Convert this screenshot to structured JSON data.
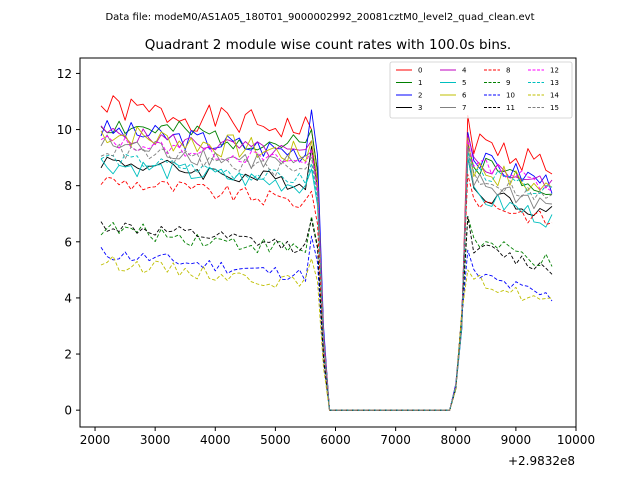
{
  "supertitle": "Data file: modeM0/AS1A05_180T01_9000002992_20081cztM0_level2_quad_clean.evt",
  "chart_data": {
    "type": "line",
    "title": "Quadrant 2 module wise count rates with 100.0s bins.",
    "xlabel": "",
    "ylabel": "",
    "x_offset_label": "+2.9832e8",
    "xlim": [
      1750,
      10000
    ],
    "ylim": [
      -0.6,
      12.55
    ],
    "x_ticks": [
      2000,
      3000,
      4000,
      5000,
      6000,
      7000,
      8000,
      9000,
      10000
    ],
    "x_tick_labels": [
      "2000",
      "3000",
      "4000",
      "5000",
      "6000",
      "7000",
      "8000",
      "9000",
      "10000"
    ],
    "y_ticks": [
      0,
      2,
      4,
      6,
      8,
      10,
      12
    ],
    "y_tick_labels": [
      "0",
      "2",
      "4",
      "6",
      "8",
      "10",
      "12"
    ],
    "grid": false,
    "legend_placement": "top-right",
    "legend_columns": 4,
    "time_series": {
      "start": 2100,
      "bin": 100,
      "count": 76,
      "gap_start": 5900,
      "gap_end": 7900,
      "segment1_end": 5500,
      "segment2_start": 8200,
      "ramp_up": [
        [
          8000,
          0.85
        ],
        [
          8100,
          3.2
        ]
      ]
    },
    "series": [
      {
        "name": "0",
        "color": "#ff0000",
        "dash": "solid",
        "level_pre": 10.8,
        "level_post": 9.6,
        "peak_pre": 10.0,
        "peak_post": 10.5,
        "noise": 0.5,
        "seed": 1
      },
      {
        "name": "1",
        "color": "#008000",
        "dash": "solid",
        "level_pre": 10.2,
        "level_post": 8.9,
        "peak_pre": 10.0,
        "peak_post": 9.5,
        "noise": 0.4,
        "seed": 2
      },
      {
        "name": "2",
        "color": "#0000ff",
        "dash": "solid",
        "level_pre": 10.0,
        "level_post": 9.0,
        "peak_pre": 10.7,
        "peak_post": 9.9,
        "noise": 0.4,
        "seed": 3
      },
      {
        "name": "3",
        "color": "#000000",
        "dash": "solid",
        "level_pre": 8.9,
        "level_post": 7.9,
        "peak_pre": 9.4,
        "peak_post": 9.0,
        "noise": 0.3,
        "seed": 4
      },
      {
        "name": "4",
        "color": "#bf00bf",
        "dash": "solid",
        "level_pre": 9.9,
        "level_post": 8.9,
        "peak_pre": 9.6,
        "peak_post": 9.8,
        "noise": 0.3,
        "seed": 5
      },
      {
        "name": "5",
        "color": "#00bfbf",
        "dash": "solid",
        "level_pre": 8.8,
        "level_post": 7.7,
        "peak_pre": 8.6,
        "peak_post": 9.0,
        "noise": 0.35,
        "seed": 6
      },
      {
        "name": "6",
        "color": "#bfbf00",
        "dash": "solid",
        "level_pre": 9.9,
        "level_post": 8.7,
        "peak_pre": 9.6,
        "peak_post": 9.7,
        "noise": 0.45,
        "seed": 7
      },
      {
        "name": "7",
        "color": "#808080",
        "dash": "solid",
        "level_pre": 9.5,
        "level_post": 8.2,
        "peak_pre": 9.2,
        "peak_post": 9.3,
        "noise": 0.4,
        "seed": 8
      },
      {
        "name": "8",
        "color": "#ff0000",
        "dash": "dashed",
        "level_pre": 8.2,
        "level_post": 7.6,
        "peak_pre": 7.8,
        "peak_post": 8.4,
        "noise": 0.3,
        "seed": 9
      },
      {
        "name": "9",
        "color": "#008000",
        "dash": "dashed",
        "level_pre": 6.5,
        "level_post": 6.1,
        "peak_pre": 6.9,
        "peak_post": 6.9,
        "noise": 0.3,
        "seed": 10
      },
      {
        "name": "10",
        "color": "#0000ff",
        "dash": "dashed",
        "level_pre": 5.6,
        "level_post": 4.9,
        "peak_pre": 6.2,
        "peak_post": 5.7,
        "noise": 0.25,
        "seed": 11
      },
      {
        "name": "11",
        "color": "#000000",
        "dash": "dashed",
        "level_pre": 6.6,
        "level_post": 5.9,
        "peak_pre": 6.8,
        "peak_post": 6.9,
        "noise": 0.25,
        "seed": 12
      },
      {
        "name": "12",
        "color": "#ff00ff",
        "dash": "dashed",
        "level_pre": 9.6,
        "level_post": 8.9,
        "peak_pre": 9.3,
        "peak_post": 9.6,
        "noise": 0.25,
        "seed": 13
      },
      {
        "name": "13",
        "color": "#00bfbf",
        "dash": "dashed",
        "level_pre": 9.0,
        "level_post": 8.6,
        "peak_pre": 8.8,
        "peak_post": 9.2,
        "noise": 0.25,
        "seed": 14
      },
      {
        "name": "14",
        "color": "#bfbf00",
        "dash": "dashed",
        "level_pre": 5.3,
        "level_post": 4.7,
        "peak_pre": 5.4,
        "peak_post": 5.0,
        "noise": 0.25,
        "seed": 15
      },
      {
        "name": "15",
        "color": "#808080",
        "dash": "dashed",
        "level_pre": 9.3,
        "level_post": 8.4,
        "peak_pre": 9.0,
        "peak_post": 9.4,
        "noise": 0.3,
        "seed": 16
      }
    ]
  }
}
